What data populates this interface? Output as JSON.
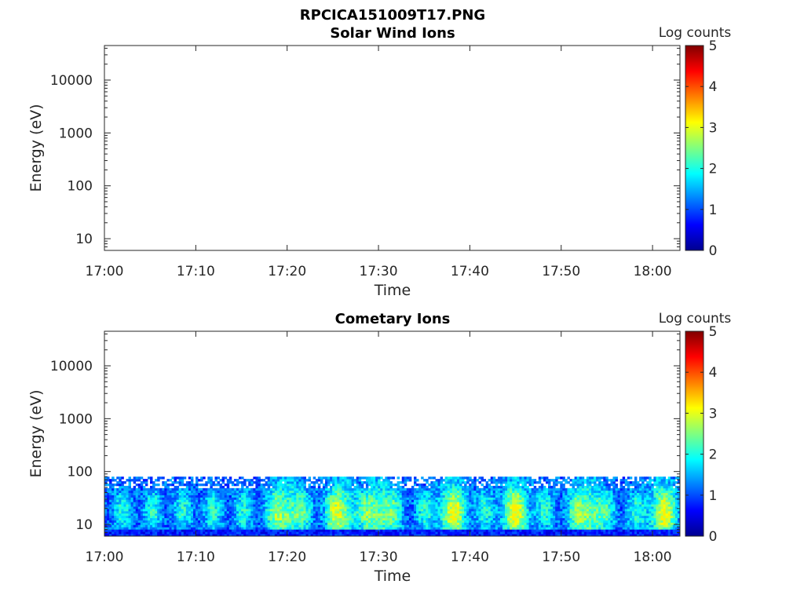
{
  "figure": {
    "title": "RPCICA151009T17.PNG"
  },
  "chart_data": [
    {
      "type": "heatmap",
      "title": "Solar Wind Ions",
      "xlabel": "Time",
      "ylabel": "Energy (eV)",
      "xticks": [
        "17:00",
        "17:10",
        "17:20",
        "17:30",
        "17:40",
        "17:50",
        "18:00"
      ],
      "xlim": [
        "17:00",
        "18:03"
      ],
      "yscale": "log",
      "yticks": [
        10,
        100,
        1000,
        10000
      ],
      "yticklabels": [
        "10",
        "100",
        "1000",
        "10000"
      ],
      "ylim": [
        6,
        45000
      ],
      "colorbar": {
        "label": "Log counts",
        "ticks": [
          "0",
          "1",
          "2",
          "3",
          "4",
          "5"
        ],
        "range": [
          0,
          5
        ],
        "colormap": "jet"
      },
      "band": null
    },
    {
      "type": "heatmap",
      "title": "Cometary Ions",
      "xlabel": "Time",
      "ylabel": "Energy (eV)",
      "xticks": [
        "17:00",
        "17:10",
        "17:20",
        "17:30",
        "17:40",
        "17:50",
        "18:00"
      ],
      "xlim": [
        "17:00",
        "18:03"
      ],
      "yscale": "log",
      "yticks": [
        10,
        100,
        1000,
        10000
      ],
      "yticklabels": [
        "10",
        "100",
        "1000",
        "10000"
      ],
      "ylim": [
        6,
        45000
      ],
      "colorbar": {
        "label": "Log counts",
        "ticks": [
          "0",
          "1",
          "2",
          "3",
          "4",
          "5"
        ],
        "range": [
          0,
          5
        ],
        "colormap": "jet"
      },
      "band": {
        "energy_range_eV": [
          6,
          80
        ],
        "typical_log_counts": [
          0.5,
          3
        ],
        "bright_times": [
          "17:20",
          "17:26",
          "17:30",
          "17:38",
          "17:45",
          "17:53",
          "18:01"
        ]
      }
    }
  ]
}
